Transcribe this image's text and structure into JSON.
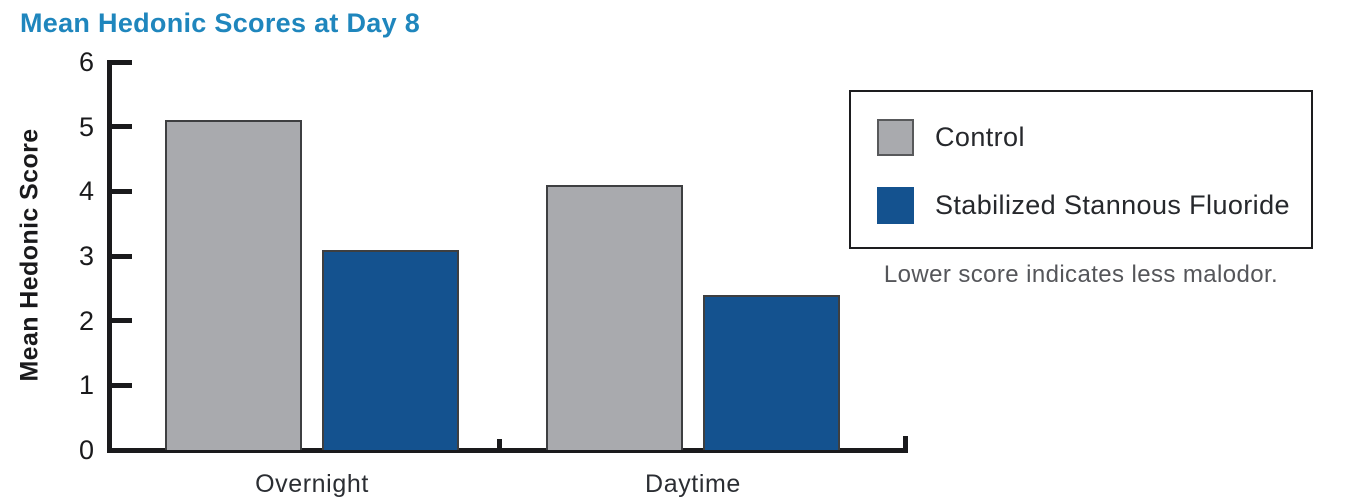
{
  "title": "Mean Hedonic Scores at Day 8",
  "caption": "Lower score indicates less malodor.",
  "colors": {
    "title": "#1F86BD",
    "axis": "#1A1A1C",
    "control_bar": "#A9AAAE",
    "fluoride_bar": "#14528F",
    "caption_text": "#55565A",
    "category_text": "#2B2E33"
  },
  "chart_data": {
    "type": "bar",
    "title": "Mean Hedonic Scores at Day 8",
    "categories": [
      "Overnight",
      "Daytime"
    ],
    "series": [
      {
        "name": "Control",
        "values": [
          5.1,
          4.1
        ],
        "color": "#A9AAAE"
      },
      {
        "name": "Stabilized Stannous Fluoride",
        "values": [
          3.1,
          2.4
        ],
        "color": "#14528F"
      }
    ],
    "xlabel": "",
    "ylabel": "Mean Hedonic Score",
    "ylim": [
      0,
      6
    ],
    "yticks": [
      0,
      1,
      2,
      3,
      4,
      5,
      6
    ],
    "grid": false,
    "legend_position": "right",
    "note": "Lower score indicates less malodor."
  }
}
